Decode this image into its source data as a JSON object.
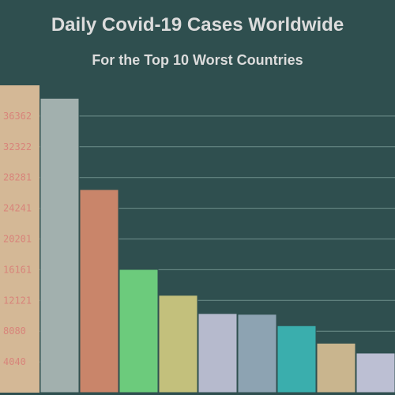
{
  "chart_data": {
    "type": "bar",
    "title": "Daily Covid-19 Cases Worldwide",
    "subtitle": "For the Top 10 Worst Countries",
    "xlabel": "",
    "ylabel": "",
    "ylim": [
      0,
      40402
    ],
    "yticks": [
      4040,
      8080,
      12121,
      16161,
      20201,
      24241,
      28281,
      32322,
      36362
    ],
    "grid": true,
    "values": [
      38700,
      26700,
      16200,
      12800,
      10400,
      10300,
      8800,
      6500,
      5200
    ],
    "colors": [
      "#a2b0ae",
      "#c9856a",
      "#6ccb7c",
      "#c3c07c",
      "#b6bacd",
      "#8da3b2",
      "#3aaead",
      "#c9b58e",
      "#bcbfd3"
    ],
    "axis_band_color": "#d4b896"
  }
}
